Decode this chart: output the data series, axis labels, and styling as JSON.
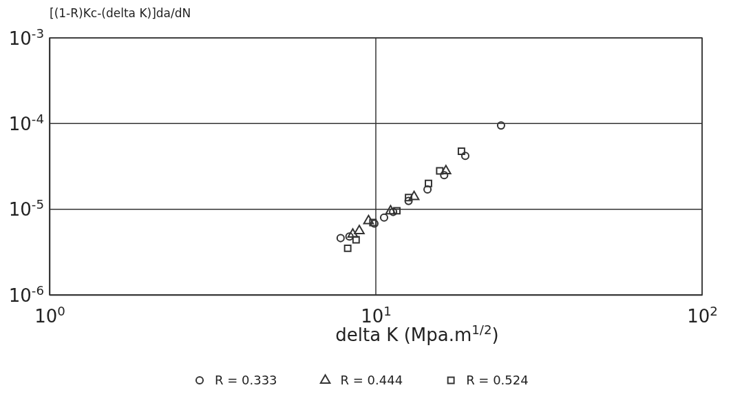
{
  "chart_data": {
    "type": "scatter",
    "log": "xy",
    "grid": true,
    "legend": "bottom",
    "xlabel": "delta K (Mpa.m$^{1/2}$)",
    "ylabel": "[(1-R)Kc-(delta K)]da/dN",
    "xlim": [
      1,
      100
    ],
    "ylim": [
      1e-06,
      0.001
    ],
    "xticks": [
      {
        "value": 1,
        "label": "10$^{0}$"
      },
      {
        "value": 10,
        "label": "10$^{1}$"
      },
      {
        "value": 100,
        "label": "10$^{2}$"
      }
    ],
    "yticks": [
      {
        "value": 1e-06,
        "label": "10$^{-6}$"
      },
      {
        "value": 1e-05,
        "label": "10$^{-5}$"
      },
      {
        "value": 0.0001,
        "label": "10$^{-4}$"
      },
      {
        "value": 0.001,
        "label": "10$^{-3}$"
      }
    ],
    "series": [
      {
        "name": "R = 0.333",
        "color": "#333333",
        "marker": "circle",
        "x": [
          24.2,
          18.8,
          16.2,
          14.4,
          12.6,
          11.3,
          10.6,
          9.9,
          8.3,
          7.8
        ],
        "values": [
          9.5e-05,
          4.2e-05,
          2.5e-05,
          1.7e-05,
          1.25e-05,
          9.3e-06,
          8e-06,
          6.8e-06,
          4.8e-06,
          4.6e-06
        ]
      },
      {
        "name": "R = 0.444",
        "color": "#333333",
        "marker": "triangle",
        "x": [
          16.4,
          13.1,
          11.1,
          9.5,
          8.9,
          8.5
        ],
        "values": [
          2.8e-05,
          1.4e-05,
          9.5e-06,
          7.3e-06,
          5.6e-06,
          5.1e-06
        ]
      },
      {
        "name": "R = 0.524",
        "color": "#333333",
        "marker": "square",
        "x": [
          18.3,
          15.7,
          14.5,
          12.6,
          11.6,
          9.8,
          8.7,
          8.2
        ],
        "values": [
          4.75e-05,
          2.8e-05,
          2e-05,
          1.37e-05,
          9.6e-06,
          7e-06,
          4.4e-06,
          3.5e-06
        ]
      }
    ]
  }
}
